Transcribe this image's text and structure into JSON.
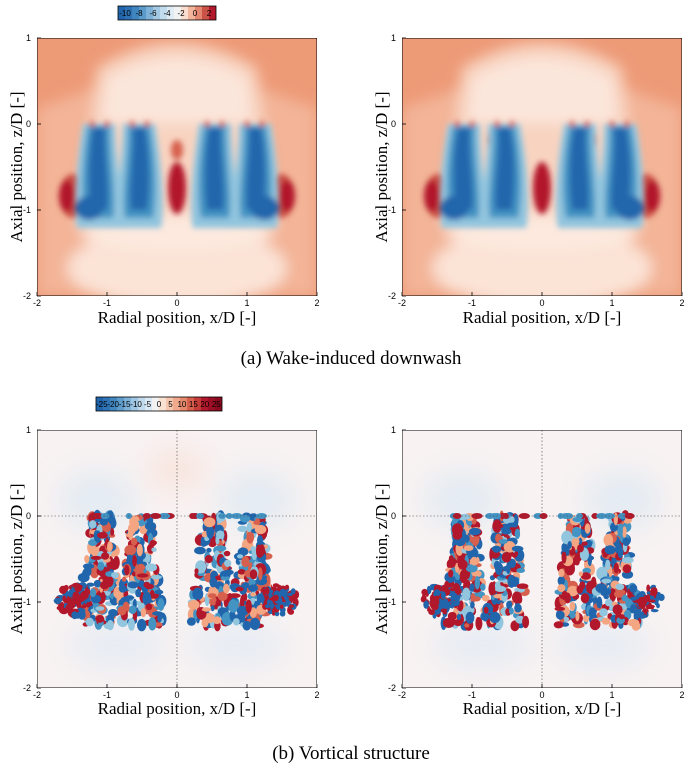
{
  "colors": {
    "deep_blue": "#2166ac",
    "mid_blue": "#4393c3",
    "light_blue": "#92c5de",
    "pale_blue": "#d1e5f0",
    "white": "#f7f7f7",
    "pale_red": "#fddbc7",
    "light_red": "#f4a582",
    "mid_red": "#d6604d",
    "deep_red": "#b2182b"
  },
  "chart_data": [
    {
      "type": "heatmap",
      "panel": "a-left",
      "xlabel": "Radial position, x/D [-]",
      "ylabel": "Axial position, z/D [-]",
      "xlim": [
        -2,
        2
      ],
      "ylim": [
        -2,
        1
      ],
      "x_ticks": [
        "-2",
        "-1",
        "0",
        "1",
        "2"
      ],
      "y_ticks": [
        "1",
        "0",
        "-1",
        "-2"
      ],
      "colorbar": {
        "values": [
          "-10",
          "-8",
          "-6",
          "-4",
          "-2",
          "0",
          "2"
        ]
      }
    },
    {
      "type": "heatmap",
      "panel": "a-right",
      "xlabel": "Radial position, x/D [-]",
      "ylabel": "Axial position, z/D [-]",
      "xlim": [
        -2,
        2
      ],
      "ylim": [
        -2,
        1
      ],
      "x_ticks": [
        "-2",
        "-1",
        "0",
        "1",
        "2"
      ],
      "y_ticks": [
        "1",
        "0",
        "-1",
        "-2"
      ]
    },
    {
      "type": "heatmap",
      "panel": "b-left",
      "xlabel": "Radial position, x/D [-]",
      "ylabel": "Axial position, z/D [-]",
      "xlim": [
        -2,
        2
      ],
      "ylim": [
        -2,
        1
      ],
      "x_ticks": [
        "-2",
        "-1",
        "0",
        "1",
        "2"
      ],
      "y_ticks": [
        "1",
        "0",
        "-1",
        "-2"
      ],
      "colorbar": {
        "values": [
          "-25",
          "-20",
          "-15",
          "-10",
          "-5",
          "0",
          "5",
          "10",
          "15",
          "20",
          "25"
        ]
      }
    },
    {
      "type": "heatmap",
      "panel": "b-right",
      "xlabel": "Radial position, x/D [-]",
      "ylabel": "Axial position, z/D [-]",
      "xlim": [
        -2,
        2
      ],
      "ylim": [
        -2,
        1
      ],
      "x_ticks": [
        "-2",
        "-1",
        "0",
        "1",
        "2"
      ],
      "y_ticks": [
        "1",
        "0",
        "-1",
        "-2"
      ]
    }
  ],
  "captions": {
    "a": "(a) Wake-induced downwash",
    "b": "(b) Vortical structure"
  }
}
